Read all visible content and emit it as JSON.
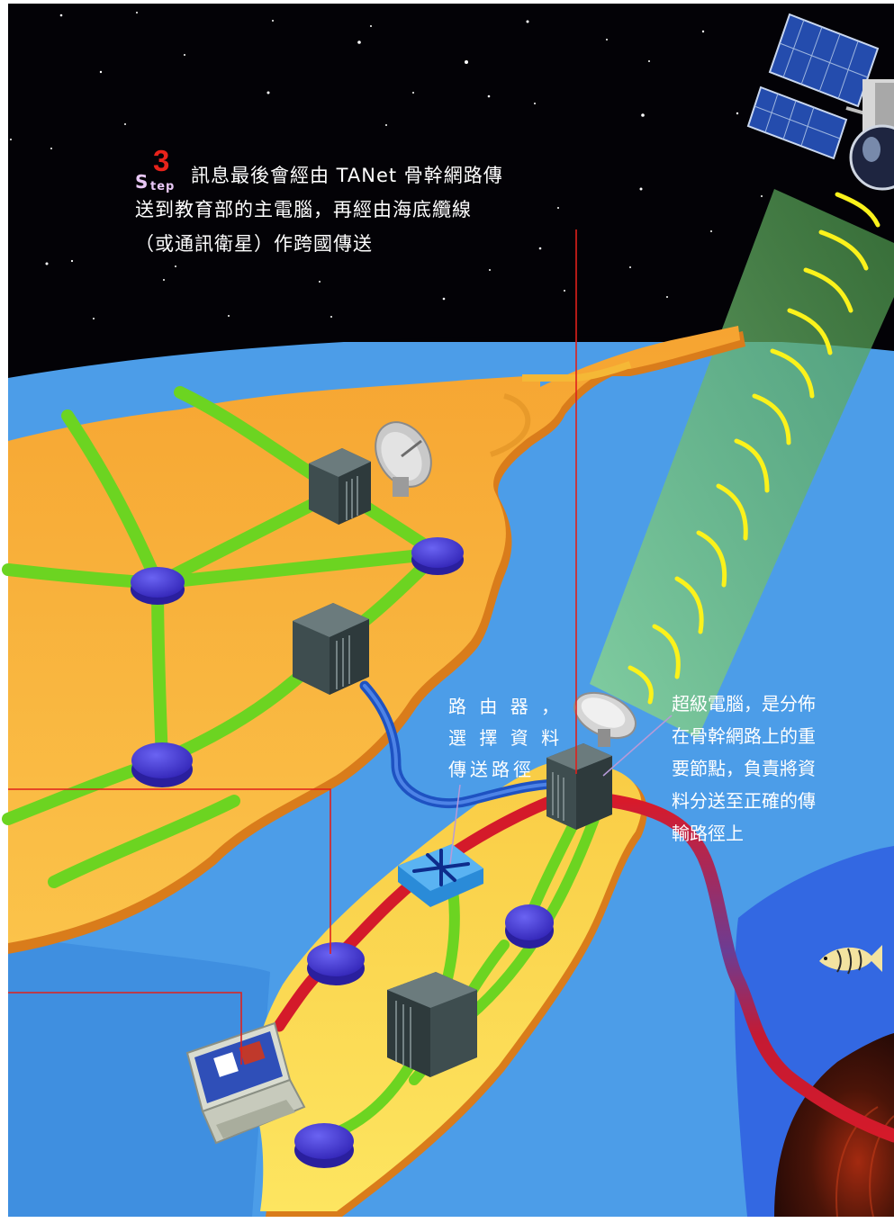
{
  "step3": {
    "badge_s": "S",
    "badge_tep": "tep",
    "badge_num": "3",
    "line1": "訊息最後會經由 TANet 骨幹網路傳",
    "line2": "送到教育部的主電腦，再經由海底纜線",
    "line3": "（或通訊衛星）作跨國傳送"
  },
  "router_label": {
    "line1": "路 由 器 ，",
    "line2": "選 擇 資 料",
    "line3": "傳送路徑"
  },
  "supercomputer_label": {
    "line1": "超級電腦，是分佈",
    "line2": "在骨幹網路上的重",
    "line3": "要節點，負責將資",
    "line4": "料分送至正確的傳",
    "line5": "輸路徑上"
  },
  "icons": [
    "satellite-icon",
    "satellite-dish-icon",
    "server-icon",
    "router-icon",
    "network-node-icon",
    "laptop-icon",
    "fish-icon"
  ],
  "colors": {
    "space": "#030206",
    "ocean": "#4a9be6",
    "land": "#f5b836",
    "land_edge": "#d97c1b",
    "link_green": "#6cd421",
    "link_red": "#d41a2a",
    "node_blue": "#4a3fdc",
    "server_gray": "#4b5a5c",
    "leader_red": "#e0201b",
    "beam_green": "#7fcf6e",
    "signal_yellow": "#fbf21b"
  }
}
